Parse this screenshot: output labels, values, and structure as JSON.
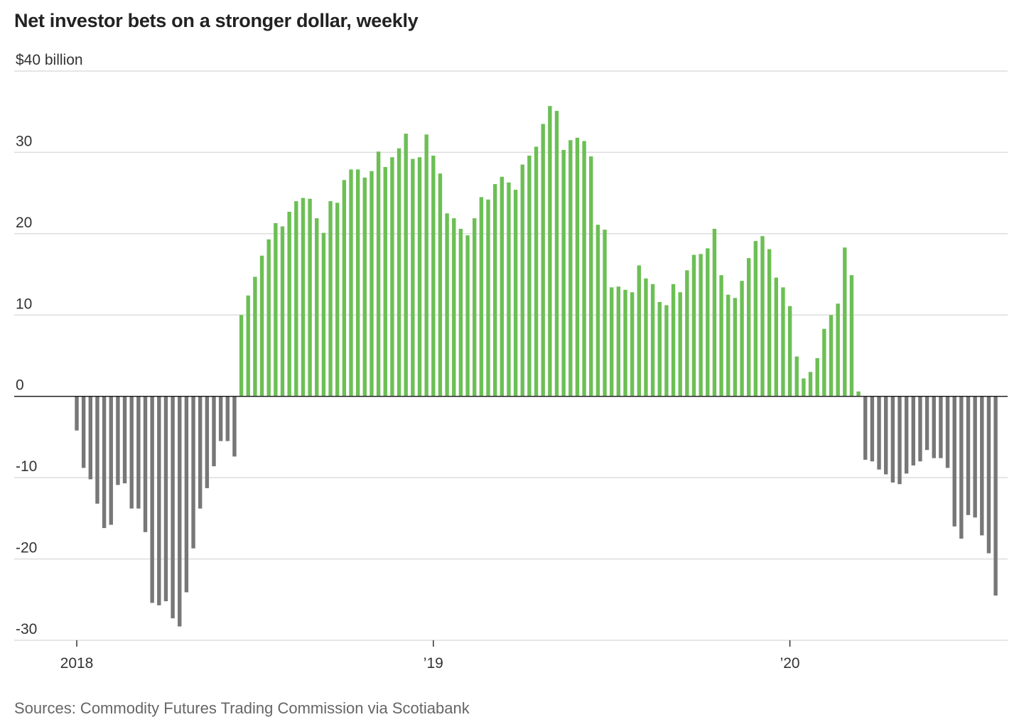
{
  "chart_data": {
    "type": "bar",
    "title": "Net investor bets on a stronger dollar, weekly",
    "ylabel": "",
    "xlabel": "",
    "ylim": [
      -30,
      40
    ],
    "y_ticks": [
      {
        "value": 40,
        "label": "$40 billion"
      },
      {
        "value": 30,
        "label": "30"
      },
      {
        "value": 20,
        "label": "20"
      },
      {
        "value": 10,
        "label": "10"
      },
      {
        "value": 0,
        "label": "0"
      },
      {
        "value": -10,
        "label": "-10"
      },
      {
        "value": -20,
        "label": "-20"
      },
      {
        "value": -30,
        "label": "-30"
      }
    ],
    "x_ticks": [
      {
        "week_index": 0,
        "label": "2018"
      },
      {
        "week_index": 52,
        "label": "’19"
      },
      {
        "week_index": 104,
        "label": "’20"
      }
    ],
    "positive_color": "#6cbf55",
    "negative_color": "#777777",
    "grid": true,
    "values": [
      -4.2,
      -8.8,
      -10.2,
      -13.2,
      -16.2,
      -15.8,
      -10.9,
      -10.7,
      -13.8,
      -13.8,
      -16.7,
      -25.4,
      -25.7,
      -25.2,
      -27.3,
      -28.3,
      -24.1,
      -18.7,
      -13.8,
      -11.3,
      -8.6,
      -5.5,
      -5.5,
      -7.4,
      10.0,
      12.4,
      14.7,
      17.3,
      19.3,
      21.3,
      20.9,
      22.7,
      24.0,
      24.4,
      24.3,
      21.9,
      20.1,
      24.0,
      23.8,
      26.6,
      27.9,
      27.9,
      26.9,
      27.7,
      30.1,
      28.2,
      29.4,
      30.5,
      32.3,
      29.2,
      29.4,
      32.2,
      29.6,
      27.4,
      22.5,
      21.9,
      20.6,
      19.8,
      21.9,
      24.5,
      24.2,
      26.1,
      27.0,
      26.3,
      25.4,
      28.5,
      29.6,
      30.7,
      33.5,
      35.7,
      35.1,
      30.3,
      31.5,
      31.8,
      31.4,
      29.5,
      21.1,
      20.5,
      13.4,
      13.5,
      13.1,
      12.8,
      16.1,
      14.5,
      13.8,
      11.6,
      11.2,
      13.8,
      12.8,
      15.5,
      17.4,
      17.5,
      18.2,
      20.6,
      14.9,
      12.5,
      12.1,
      14.2,
      17.0,
      19.1,
      19.7,
      18.1,
      14.6,
      13.4,
      11.1,
      4.9,
      2.2,
      3.0,
      4.7,
      8.3,
      10.0,
      11.4,
      18.3,
      14.9,
      0.6,
      -7.8,
      -8.0,
      -9.0,
      -9.6,
      -10.6,
      -10.8,
      -9.5,
      -8.5,
      -8.0,
      -6.6,
      -7.6,
      -7.6,
      -8.8,
      -16.0,
      -17.5,
      -14.6,
      -14.9,
      -17.1,
      -19.3,
      -24.5
    ]
  },
  "source": "Sources: Commodity Futures Trading Commission via Scotiabank"
}
